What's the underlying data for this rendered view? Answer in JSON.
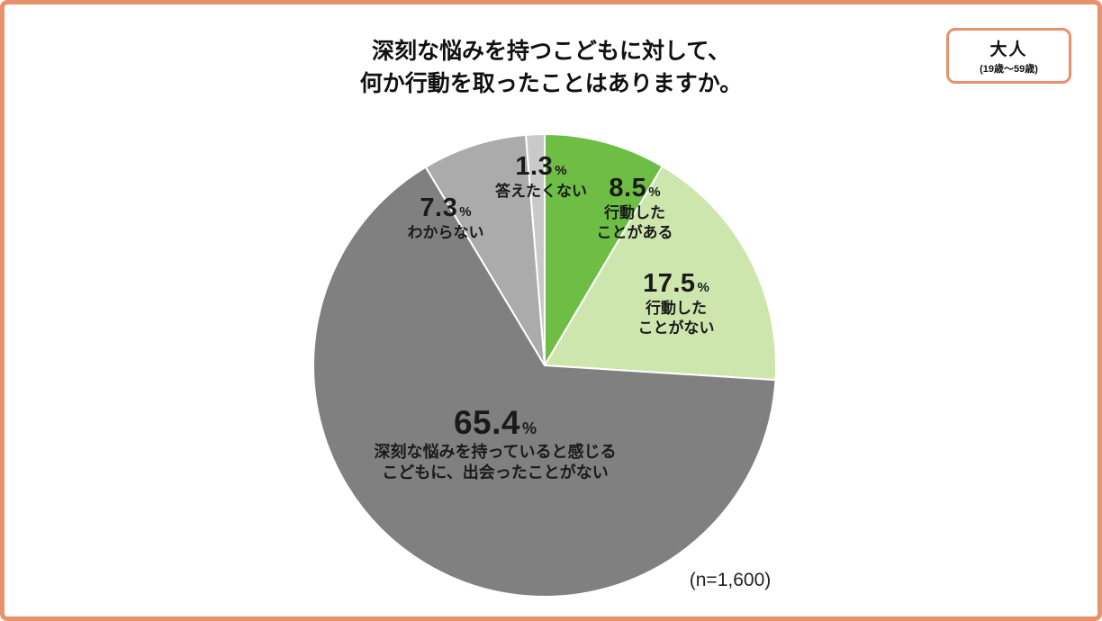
{
  "page": {
    "border_color": "#E8916A",
    "title_line1": "深刻な悩みを持つこどもに対して、",
    "title_line2": "何か行動を取ったことはありますか。",
    "badge": {
      "label": "大人",
      "sublabel": "(19歳〜59歳)"
    },
    "sample_size": "(n=1,600)"
  },
  "chart_data": {
    "type": "pie",
    "title": "深刻な悩みを持つこどもに対して、何か行動を取ったことはありますか。",
    "start_angle_deg": 0,
    "direction": "clockwise",
    "n": "1,600",
    "slices": [
      {
        "label": "行動したことがある",
        "value": 8.5,
        "color": "#6EBE45"
      },
      {
        "label": "行動したことがない",
        "value": 17.5,
        "color": "#CDE6AD"
      },
      {
        "label": "深刻な悩みを持っていると感じるこどもに、出会ったことがない",
        "value": 65.4,
        "color": "#808080"
      },
      {
        "label": "わからない",
        "value": 7.3,
        "color": "#ABABAB"
      },
      {
        "label": "答えたくない",
        "value": 1.3,
        "color": "#C9C9C9"
      }
    ]
  },
  "labels": {
    "acted": {
      "pct": "8.5",
      "unit": "%",
      "line1": "行動した",
      "line2": "ことがある"
    },
    "not_acted": {
      "pct": "17.5",
      "unit": "%",
      "line1": "行動した",
      "line2": "ことがない"
    },
    "never_met": {
      "pct": "65.4",
      "unit": "%",
      "line1": "深刻な悩みを持っていると感じる",
      "line2": "こどもに、出会ったことがない"
    },
    "dont_know": {
      "pct": "7.3",
      "unit": "%",
      "line1": "わからない"
    },
    "no_answer": {
      "pct": "1.3",
      "unit": "%",
      "line1": "答えたくない"
    }
  }
}
